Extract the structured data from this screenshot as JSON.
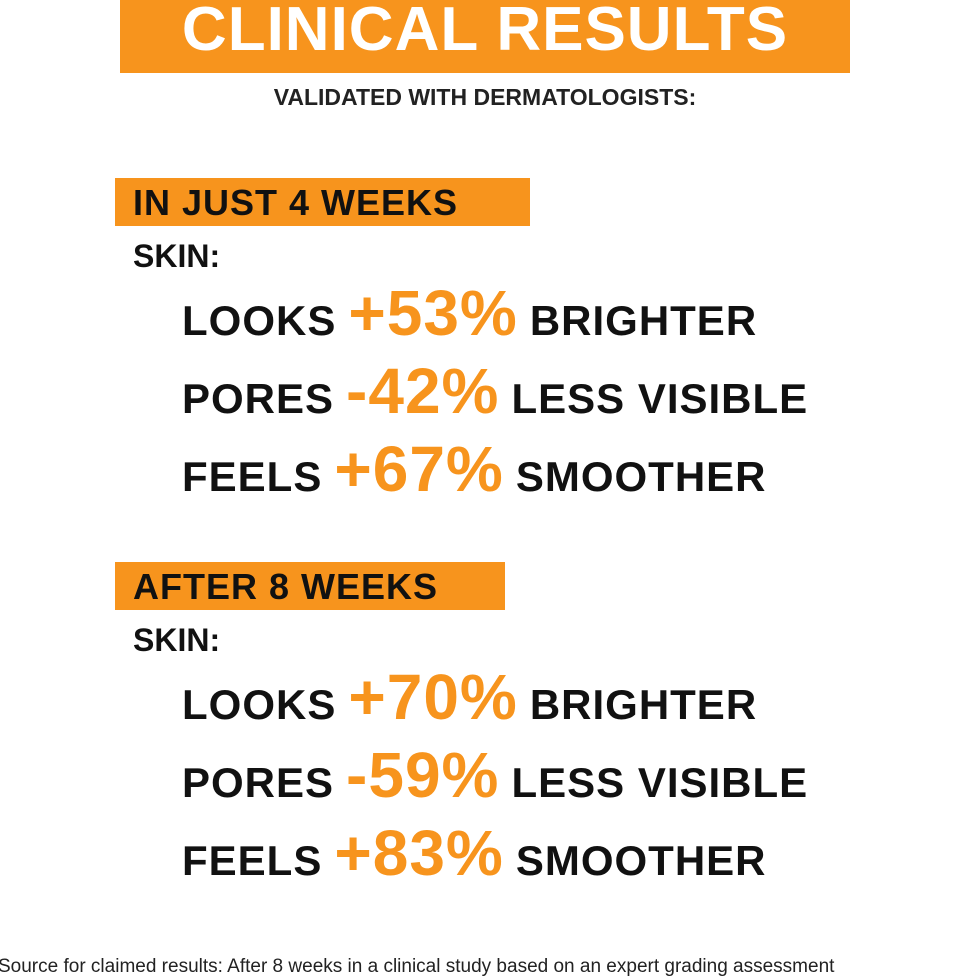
{
  "header": {
    "title": "CLINICAL RESULTS",
    "subtitle": "VALIDATED WITH DERMATOLOGISTS:"
  },
  "sections": [
    {
      "label": "IN JUST 4 WEEKS",
      "subject": "SKIN:",
      "rows": [
        {
          "prefix": "LOOKS",
          "value": "+53%",
          "suffix": "BRIGHTER"
        },
        {
          "prefix": "PORES",
          "value": "-42%",
          "suffix": "LESS VISIBLE"
        },
        {
          "prefix": "FEELS",
          "value": "+67%",
          "suffix": "SMOOTHER"
        }
      ]
    },
    {
      "label": "AFTER 8 WEEKS",
      "subject": "SKIN:",
      "rows": [
        {
          "prefix": "LOOKS",
          "value": "+70%",
          "suffix": "BRIGHTER"
        },
        {
          "prefix": "PORES",
          "value": "-59%",
          "suffix": "LESS VISIBLE"
        },
        {
          "prefix": "FEELS",
          "value": "+83%",
          "suffix": "SMOOTHER"
        }
      ]
    }
  ],
  "footer": "Source for claimed results: After 8 weeks in a clinical study based on an expert grading assessment"
}
